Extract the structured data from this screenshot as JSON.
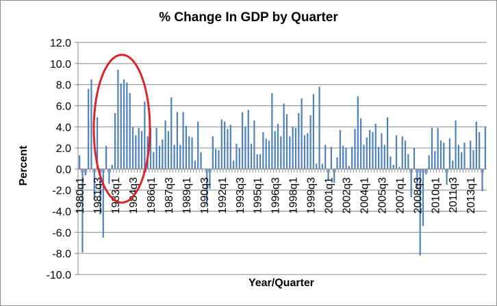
{
  "chart_data": {
    "type": "bar",
    "title": "% Change In GDP by Quarter",
    "xlabel": "Year/Quarter",
    "ylabel": "Percent",
    "ylim": [
      -10,
      12
    ],
    "yticks": [
      "12.0",
      "10.0",
      "8.0",
      "6.0",
      "4.0",
      "2.0",
      "0.0",
      "-2.0",
      "-4.0",
      "-6.0",
      "-8.0",
      "-10.0"
    ],
    "grid": true,
    "start": "1980q1",
    "tick_labels": [
      "1980q1",
      "1981q3",
      "1983q1",
      "1984q3",
      "1986q1",
      "1987q3",
      "1989q1",
      "1990q3",
      "1992q1",
      "1993q3",
      "1995q1",
      "1996q3",
      "1998q1",
      "1999q3",
      "2001q1",
      "2002q3",
      "2004q1",
      "2005q3",
      "2007q1",
      "2008q3",
      "2010q1",
      "2011q3",
      "2013q1"
    ],
    "values": [
      1.3,
      -7.9,
      -0.6,
      7.6,
      8.5,
      -2.9,
      4.9,
      -4.3,
      -6.5,
      2.2,
      -1.4,
      0.4,
      5.3,
      9.4,
      8.1,
      8.5,
      8.2,
      7.2,
      4.0,
      3.2,
      3.9,
      3.6,
      6.4,
      3.1,
      3.9,
      1.6,
      3.9,
      2.2,
      2.8,
      4.6,
      3.6,
      6.8,
      2.3,
      5.4,
      2.3,
      5.4,
      4.1,
      3.1,
      3.0,
      0.8,
      4.5,
      1.6,
      0.0,
      -3.4,
      -1.9,
      3.1,
      1.9,
      1.8,
      4.7,
      4.5,
      3.8,
      4.2,
      0.8,
      2.4,
      2.0,
      5.4,
      4.0,
      5.6,
      2.4,
      4.6,
      1.4,
      1.4,
      3.5,
      2.9,
      2.7,
      7.2,
      3.6,
      4.3,
      3.1,
      6.2,
      5.2,
      3.1,
      4.0,
      3.9,
      5.3,
      6.7,
      3.2,
      3.4,
      5.1,
      7.1,
      0.5,
      7.8,
      0.5,
      2.3,
      -1.1,
      2.1,
      -1.3,
      1.1,
      3.7,
      2.2,
      2.0,
      0.3,
      2.1,
      3.8,
      6.9,
      4.8,
      2.3,
      3.0,
      3.7,
      3.5,
      4.3,
      2.1,
      3.4,
      2.3,
      4.9,
      1.2,
      0.4,
      3.2,
      0.2,
      3.1,
      2.7,
      1.4,
      -2.7,
      2.0,
      -1.9,
      -8.2,
      -5.4,
      -0.5,
      1.3,
      3.9,
      1.7,
      3.9,
      2.7,
      2.5,
      -1.5,
      2.9,
      0.8,
      4.6,
      2.3,
      1.6,
      2.5,
      0.1,
      2.7,
      1.8,
      4.5,
      3.5,
      -2.1,
      4.0
    ],
    "bar_color": "#4f81bd",
    "annotation": {
      "shape": "ellipse",
      "color": "#d9262b",
      "around": "1983q1-1985q4"
    }
  }
}
